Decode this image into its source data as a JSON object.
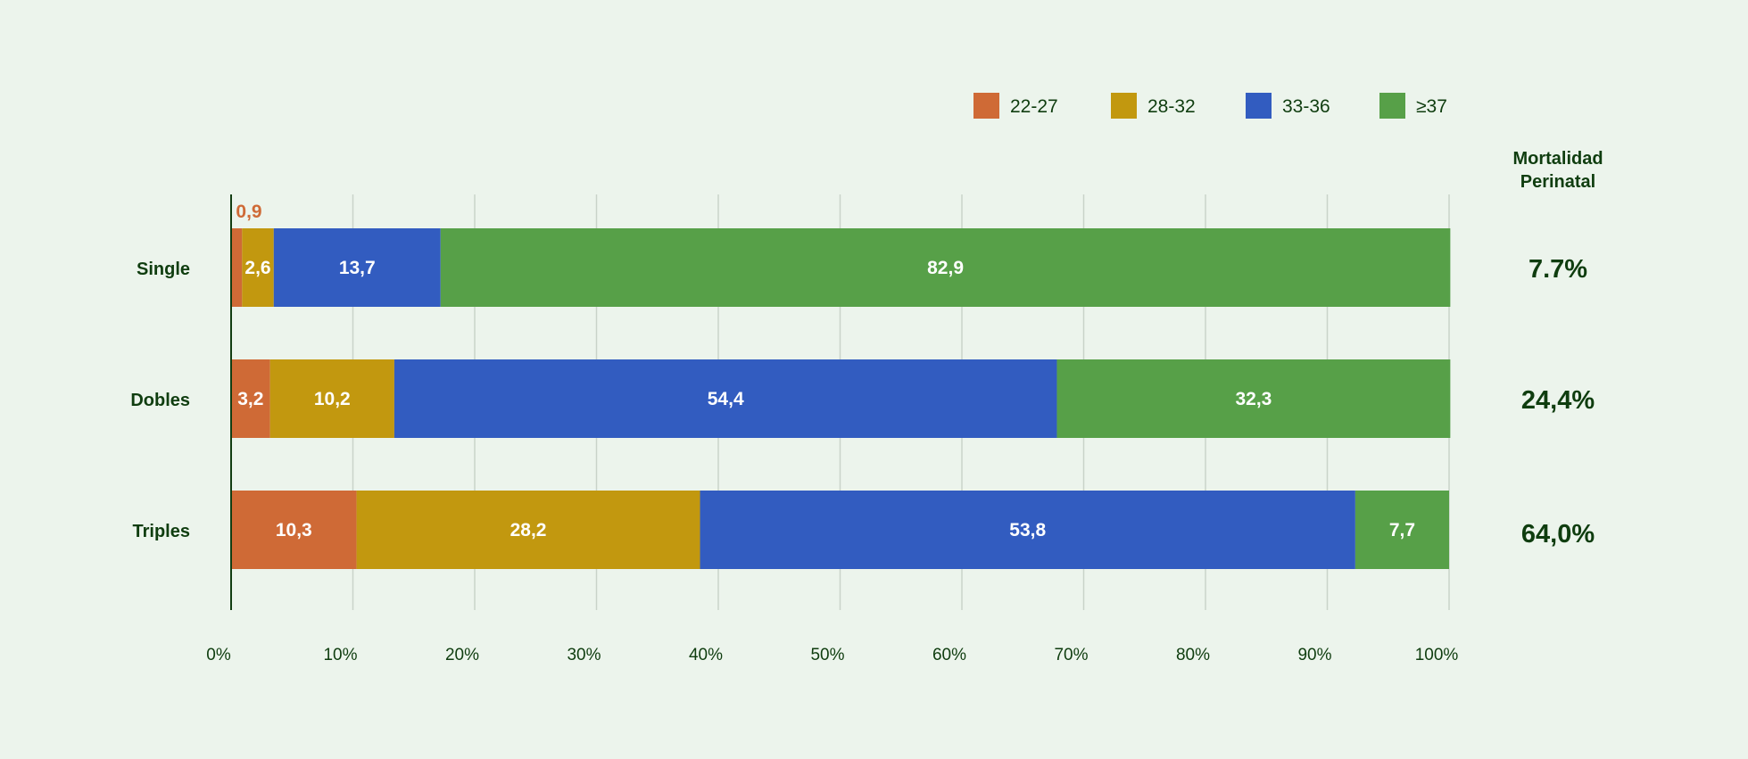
{
  "chart_data": {
    "type": "bar",
    "orientation": "horizontal",
    "stacked": true,
    "categories": [
      "Single",
      "Dobles",
      "Triples"
    ],
    "series": [
      {
        "name": "22-27",
        "color": "#cf6a36",
        "values": [
          0.9,
          3.2,
          10.3
        ],
        "labels": [
          "0,9",
          "3,2",
          "10,3"
        ]
      },
      {
        "name": "28-32",
        "color": "#c2980f",
        "values": [
          2.6,
          10.2,
          28.2
        ],
        "labels": [
          "2,6",
          "10,2",
          "28,2"
        ]
      },
      {
        "name": "33-36",
        "color": "#325cc0",
        "values": [
          13.7,
          54.4,
          53.8
        ],
        "labels": [
          "13,7",
          "54,4",
          "53,8"
        ]
      },
      {
        "name": "≥37",
        "color": "#57a048",
        "values": [
          82.9,
          32.3,
          7.7
        ],
        "labels": [
          "82,9",
          "32,3",
          "7,7"
        ]
      }
    ],
    "xlim": [
      0,
      100
    ],
    "x_ticks": [
      "0%",
      "10%",
      "20%",
      "30%",
      "40%",
      "50%",
      "60%",
      "70%",
      "80%",
      "90%",
      "100%"
    ],
    "grid": "vertical",
    "legend_position": "top-right",
    "side_column": {
      "title_lines": [
        "Mortalidad",
        "Perinatal"
      ],
      "values": [
        "7.7%",
        "24,4%",
        "64,0%"
      ]
    }
  }
}
